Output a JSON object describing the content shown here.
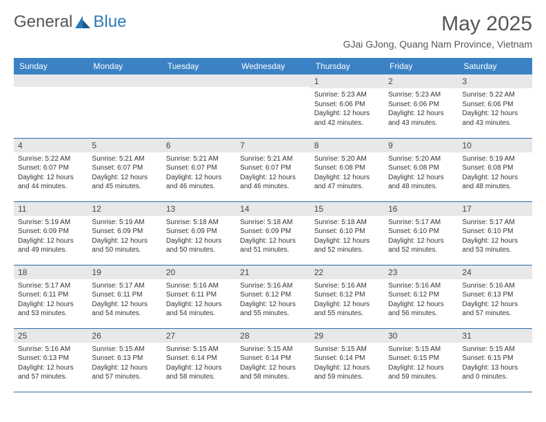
{
  "logo": {
    "text_general": "General",
    "text_blue": "Blue"
  },
  "title": "May 2025",
  "location": "GJai GJong, Quang Nam Province, Vietnam",
  "colors": {
    "header_bg": "#3b82c4",
    "header_text": "#ffffff",
    "day_num_bg": "#e8e8e8",
    "border": "#2a6aa8",
    "text": "#333333",
    "logo_blue": "#2a7ab8"
  },
  "day_headers": [
    "Sunday",
    "Monday",
    "Tuesday",
    "Wednesday",
    "Thursday",
    "Friday",
    "Saturday"
  ],
  "weeks": [
    [
      {
        "n": "",
        "sr": "",
        "ss": "",
        "dl": ""
      },
      {
        "n": "",
        "sr": "",
        "ss": "",
        "dl": ""
      },
      {
        "n": "",
        "sr": "",
        "ss": "",
        "dl": ""
      },
      {
        "n": "",
        "sr": "",
        "ss": "",
        "dl": ""
      },
      {
        "n": "1",
        "sr": "Sunrise: 5:23 AM",
        "ss": "Sunset: 6:06 PM",
        "dl": "Daylight: 12 hours and 42 minutes."
      },
      {
        "n": "2",
        "sr": "Sunrise: 5:23 AM",
        "ss": "Sunset: 6:06 PM",
        "dl": "Daylight: 12 hours and 43 minutes."
      },
      {
        "n": "3",
        "sr": "Sunrise: 5:22 AM",
        "ss": "Sunset: 6:06 PM",
        "dl": "Daylight: 12 hours and 43 minutes."
      }
    ],
    [
      {
        "n": "4",
        "sr": "Sunrise: 5:22 AM",
        "ss": "Sunset: 6:07 PM",
        "dl": "Daylight: 12 hours and 44 minutes."
      },
      {
        "n": "5",
        "sr": "Sunrise: 5:21 AM",
        "ss": "Sunset: 6:07 PM",
        "dl": "Daylight: 12 hours and 45 minutes."
      },
      {
        "n": "6",
        "sr": "Sunrise: 5:21 AM",
        "ss": "Sunset: 6:07 PM",
        "dl": "Daylight: 12 hours and 46 minutes."
      },
      {
        "n": "7",
        "sr": "Sunrise: 5:21 AM",
        "ss": "Sunset: 6:07 PM",
        "dl": "Daylight: 12 hours and 46 minutes."
      },
      {
        "n": "8",
        "sr": "Sunrise: 5:20 AM",
        "ss": "Sunset: 6:08 PM",
        "dl": "Daylight: 12 hours and 47 minutes."
      },
      {
        "n": "9",
        "sr": "Sunrise: 5:20 AM",
        "ss": "Sunset: 6:08 PM",
        "dl": "Daylight: 12 hours and 48 minutes."
      },
      {
        "n": "10",
        "sr": "Sunrise: 5:19 AM",
        "ss": "Sunset: 6:08 PM",
        "dl": "Daylight: 12 hours and 48 minutes."
      }
    ],
    [
      {
        "n": "11",
        "sr": "Sunrise: 5:19 AM",
        "ss": "Sunset: 6:09 PM",
        "dl": "Daylight: 12 hours and 49 minutes."
      },
      {
        "n": "12",
        "sr": "Sunrise: 5:19 AM",
        "ss": "Sunset: 6:09 PM",
        "dl": "Daylight: 12 hours and 50 minutes."
      },
      {
        "n": "13",
        "sr": "Sunrise: 5:18 AM",
        "ss": "Sunset: 6:09 PM",
        "dl": "Daylight: 12 hours and 50 minutes."
      },
      {
        "n": "14",
        "sr": "Sunrise: 5:18 AM",
        "ss": "Sunset: 6:09 PM",
        "dl": "Daylight: 12 hours and 51 minutes."
      },
      {
        "n": "15",
        "sr": "Sunrise: 5:18 AM",
        "ss": "Sunset: 6:10 PM",
        "dl": "Daylight: 12 hours and 52 minutes."
      },
      {
        "n": "16",
        "sr": "Sunrise: 5:17 AM",
        "ss": "Sunset: 6:10 PM",
        "dl": "Daylight: 12 hours and 52 minutes."
      },
      {
        "n": "17",
        "sr": "Sunrise: 5:17 AM",
        "ss": "Sunset: 6:10 PM",
        "dl": "Daylight: 12 hours and 53 minutes."
      }
    ],
    [
      {
        "n": "18",
        "sr": "Sunrise: 5:17 AM",
        "ss": "Sunset: 6:11 PM",
        "dl": "Daylight: 12 hours and 53 minutes."
      },
      {
        "n": "19",
        "sr": "Sunrise: 5:17 AM",
        "ss": "Sunset: 6:11 PM",
        "dl": "Daylight: 12 hours and 54 minutes."
      },
      {
        "n": "20",
        "sr": "Sunrise: 5:16 AM",
        "ss": "Sunset: 6:11 PM",
        "dl": "Daylight: 12 hours and 54 minutes."
      },
      {
        "n": "21",
        "sr": "Sunrise: 5:16 AM",
        "ss": "Sunset: 6:12 PM",
        "dl": "Daylight: 12 hours and 55 minutes."
      },
      {
        "n": "22",
        "sr": "Sunrise: 5:16 AM",
        "ss": "Sunset: 6:12 PM",
        "dl": "Daylight: 12 hours and 55 minutes."
      },
      {
        "n": "23",
        "sr": "Sunrise: 5:16 AM",
        "ss": "Sunset: 6:12 PM",
        "dl": "Daylight: 12 hours and 56 minutes."
      },
      {
        "n": "24",
        "sr": "Sunrise: 5:16 AM",
        "ss": "Sunset: 6:13 PM",
        "dl": "Daylight: 12 hours and 57 minutes."
      }
    ],
    [
      {
        "n": "25",
        "sr": "Sunrise: 5:16 AM",
        "ss": "Sunset: 6:13 PM",
        "dl": "Daylight: 12 hours and 57 minutes."
      },
      {
        "n": "26",
        "sr": "Sunrise: 5:15 AM",
        "ss": "Sunset: 6:13 PM",
        "dl": "Daylight: 12 hours and 57 minutes."
      },
      {
        "n": "27",
        "sr": "Sunrise: 5:15 AM",
        "ss": "Sunset: 6:14 PM",
        "dl": "Daylight: 12 hours and 58 minutes."
      },
      {
        "n": "28",
        "sr": "Sunrise: 5:15 AM",
        "ss": "Sunset: 6:14 PM",
        "dl": "Daylight: 12 hours and 58 minutes."
      },
      {
        "n": "29",
        "sr": "Sunrise: 5:15 AM",
        "ss": "Sunset: 6:14 PM",
        "dl": "Daylight: 12 hours and 59 minutes."
      },
      {
        "n": "30",
        "sr": "Sunrise: 5:15 AM",
        "ss": "Sunset: 6:15 PM",
        "dl": "Daylight: 12 hours and 59 minutes."
      },
      {
        "n": "31",
        "sr": "Sunrise: 5:15 AM",
        "ss": "Sunset: 6:15 PM",
        "dl": "Daylight: 13 hours and 0 minutes."
      }
    ]
  ]
}
